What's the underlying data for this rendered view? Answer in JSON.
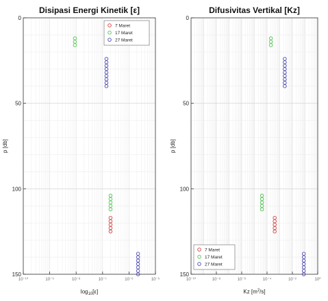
{
  "chart_data": [
    {
      "type": "scatter",
      "title": "Disipasi Energi Kinetik [ε]",
      "xlabel_main": "log",
      "xlabel_sub": "10",
      "xlabel_tail": "[ε]",
      "ylabel": "p [db]",
      "x_scale": "log",
      "xlim": [
        1e-10,
        1e-05
      ],
      "x_ticks": [
        1e-10,
        1e-09,
        1e-08,
        1e-07,
        1e-06,
        1e-05
      ],
      "x_tick_labels": [
        "10⁻¹⁰",
        "10⁻⁹",
        "10⁻⁸",
        "10⁻⁷",
        "10⁻⁶",
        "10⁻⁵"
      ],
      "ylim": [
        0,
        150
      ],
      "y_reversed": true,
      "y_ticks": [
        0,
        50,
        100,
        150
      ],
      "y_tick_labels": [
        "0",
        "50",
        "100",
        "150"
      ],
      "grid": true,
      "legend_position": "top-right",
      "series": [
        {
          "name": "7 Maret",
          "color": "#d04040",
          "points": [
            [
              2e-07,
              117
            ],
            [
              2e-07,
              119
            ],
            [
              2e-07,
              121
            ],
            [
              2e-07,
              123
            ],
            [
              2e-07,
              125
            ]
          ]
        },
        {
          "name": "17 Maret",
          "color": "#4fc44f",
          "points": [
            [
              9e-09,
              12
            ],
            [
              9e-09,
              14
            ],
            [
              9e-09,
              16
            ],
            [
              2e-07,
              104
            ],
            [
              2e-07,
              106
            ],
            [
              2e-07,
              108
            ],
            [
              2e-07,
              110
            ],
            [
              2e-07,
              112
            ]
          ]
        },
        {
          "name": "27 Maret",
          "color": "#4848b0",
          "points": [
            [
              1.4e-07,
              24
            ],
            [
              1.4e-07,
              26
            ],
            [
              1.4e-07,
              28
            ],
            [
              1.4e-07,
              30
            ],
            [
              1.4e-07,
              32
            ],
            [
              1.4e-07,
              34
            ],
            [
              1.4e-07,
              36
            ],
            [
              1.4e-07,
              38
            ],
            [
              1.4e-07,
              40
            ],
            [
              2.2e-06,
              138
            ],
            [
              2.2e-06,
              140
            ],
            [
              2.2e-06,
              142
            ],
            [
              2.2e-06,
              144
            ],
            [
              2.2e-06,
              146
            ],
            [
              2.2e-06,
              148
            ],
            [
              2.2e-06,
              150
            ]
          ]
        }
      ]
    },
    {
      "type": "scatter",
      "title": "Difusivitas Vertikal [Kz]",
      "xlabel_main": "Kz [m",
      "xlabel_sup": "2",
      "xlabel_tail": "/s]",
      "ylabel": "p [db]",
      "x_scale": "log",
      "xlim": [
        1e-10,
        1.0
      ],
      "x_ticks": [
        1e-10,
        1e-08,
        1e-06,
        0.0001,
        0.01,
        1.0
      ],
      "x_tick_labels": [
        "10⁻¹⁰",
        "10⁻⁸",
        "10⁻⁶",
        "10⁻⁴",
        "10⁻²",
        "10⁰"
      ],
      "ylim": [
        0,
        150
      ],
      "y_reversed": true,
      "y_ticks": [
        0,
        50,
        100,
        150
      ],
      "y_tick_labels": [
        "0",
        "50",
        "100",
        "150"
      ],
      "grid": true,
      "legend_position": "bottom-left",
      "series": [
        {
          "name": "7 Maret",
          "color": "#d04040",
          "points": [
            [
              0.0004,
              117
            ],
            [
              0.0004,
              119
            ],
            [
              0.0004,
              121
            ],
            [
              0.0004,
              123
            ],
            [
              0.0004,
              125
            ]
          ]
        },
        {
          "name": "17 Maret",
          "color": "#4fc44f",
          "points": [
            [
              0.0002,
              12
            ],
            [
              0.0002,
              14
            ],
            [
              0.0002,
              16
            ],
            [
              4e-05,
              104
            ],
            [
              4e-05,
              106
            ],
            [
              4e-05,
              108
            ],
            [
              4e-05,
              110
            ],
            [
              4e-05,
              112
            ]
          ]
        },
        {
          "name": "27 Maret",
          "color": "#4848b0",
          "points": [
            [
              0.0025,
              24
            ],
            [
              0.0025,
              26
            ],
            [
              0.0025,
              28
            ],
            [
              0.0025,
              30
            ],
            [
              0.0025,
              32
            ],
            [
              0.0025,
              34
            ],
            [
              0.0025,
              36
            ],
            [
              0.0025,
              38
            ],
            [
              0.0025,
              40
            ],
            [
              0.08,
              138
            ],
            [
              0.08,
              140
            ],
            [
              0.08,
              142
            ],
            [
              0.08,
              144
            ],
            [
              0.08,
              146
            ],
            [
              0.08,
              148
            ],
            [
              0.08,
              150
            ]
          ]
        }
      ]
    }
  ]
}
